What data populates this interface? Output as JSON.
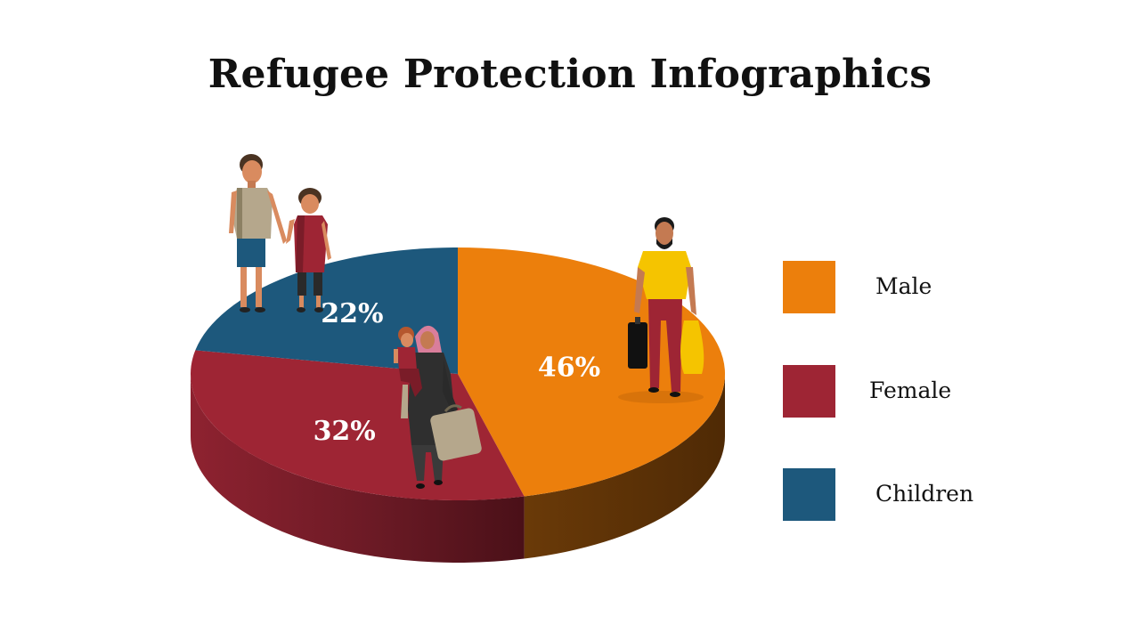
{
  "slide": {
    "title": "Refugee Protection Infographics"
  },
  "chart_data": {
    "type": "pie",
    "title": "Refugee Protection Infographics",
    "slices": [
      {
        "label": "Male",
        "value": 46,
        "display": "46%",
        "color": "#EC7F0C",
        "side_color": "#5E3307"
      },
      {
        "label": "Female",
        "value": 32,
        "display": "32%",
        "color": "#9E2534",
        "side_color": "#5A1520"
      },
      {
        "label": "Children",
        "value": 22,
        "display": "22%",
        "color": "#1D587C",
        "side_color": "#0E2E44"
      }
    ],
    "legend_position": "right",
    "style": "3d-tilted"
  },
  "legend": {
    "items": [
      {
        "label": "Male",
        "color": "#EC7F0C"
      },
      {
        "label": "Female",
        "color": "#9E2534"
      },
      {
        "label": "Children",
        "color": "#1D587C"
      }
    ]
  },
  "illustrations": [
    {
      "name": "child-boy-figure",
      "icon": "child-figure"
    },
    {
      "name": "child-girl-figure",
      "icon": "child-figure"
    },
    {
      "name": "woman-with-child-figure",
      "icon": "woman-figure"
    },
    {
      "name": "man-with-luggage-figure",
      "icon": "man-figure"
    }
  ]
}
